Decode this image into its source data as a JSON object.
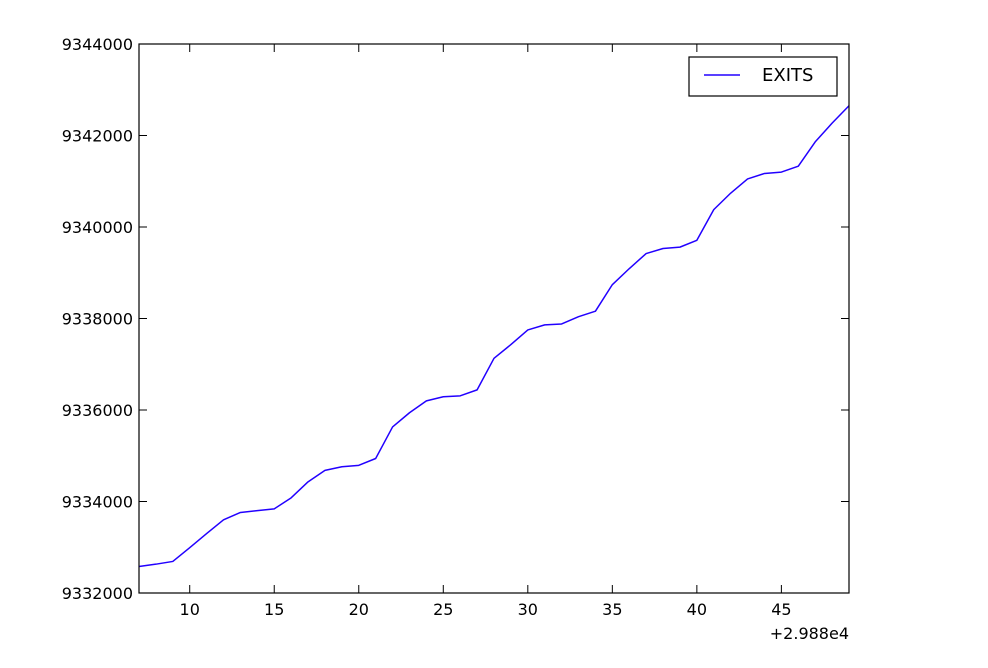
{
  "chart_data": {
    "type": "line",
    "title": "",
    "xlabel": "",
    "ylabel": "",
    "x_offset_label": "+2.988e4",
    "xlim": [
      7,
      49
    ],
    "ylim": [
      9332000,
      9344000
    ],
    "x_ticks": [
      10,
      15,
      20,
      25,
      30,
      35,
      40,
      45
    ],
    "y_ticks": [
      9332000,
      9334000,
      9336000,
      9338000,
      9340000,
      9342000,
      9344000
    ],
    "legend": {
      "position": "top-right",
      "entries": [
        "EXITS"
      ]
    },
    "grid": false,
    "series": [
      {
        "name": "EXITS",
        "color": "#2200ff",
        "x": [
          7,
          8,
          9,
          10,
          11,
          12,
          13,
          14,
          15,
          16,
          17,
          18,
          19,
          20,
          21,
          22,
          23,
          24,
          25,
          26,
          27,
          28,
          29,
          30,
          31,
          32,
          33,
          34,
          35,
          36,
          37,
          38,
          39,
          40,
          41,
          42,
          43,
          44,
          45,
          46,
          47,
          48,
          49
        ],
        "y": [
          9332580,
          9332630,
          9332690,
          9332990,
          9333300,
          9333600,
          9333760,
          9333800,
          9333840,
          9334080,
          9334430,
          9334680,
          9334760,
          9334790,
          9334940,
          9335630,
          9335940,
          9336200,
          9336290,
          9336310,
          9336440,
          9337130,
          9337430,
          9337750,
          9337860,
          9337880,
          9338040,
          9338160,
          9338740,
          9339090,
          9339420,
          9339530,
          9339560,
          9339710,
          9340380,
          9340740,
          9341050,
          9341170,
          9341200,
          9341330,
          9341860,
          9342270,
          9342650
        ]
      }
    ]
  }
}
